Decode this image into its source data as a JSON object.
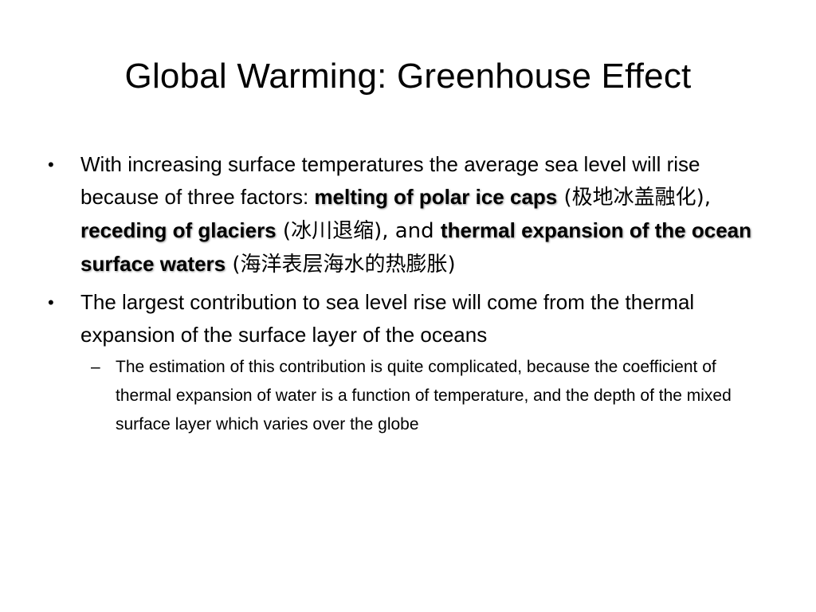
{
  "slide": {
    "title": "Global Warming: Greenhouse Effect",
    "bullet_marker": "•",
    "sub_marker": "–",
    "bullets": [
      {
        "segments": [
          "With increasing surface temperatures the average sea level will rise because of three factors: ",
          "melting of polar ice caps",
          " (极地冰盖融化), ",
          "receding of glaciers",
          " (冰川退缩), and ",
          "thermal expansion of the ocean surface waters",
          " (海洋表层海水的热膨胀)"
        ]
      },
      {
        "text": "The largest contribution to sea level rise will come from the thermal expansion of the surface layer of the oceans",
        "sub_items": [
          "The estimation of this contribution is quite complicated, because the coefficient of thermal expansion of water is a function of temperature, and the depth of the mixed surface layer which varies over the globe"
        ]
      }
    ]
  }
}
